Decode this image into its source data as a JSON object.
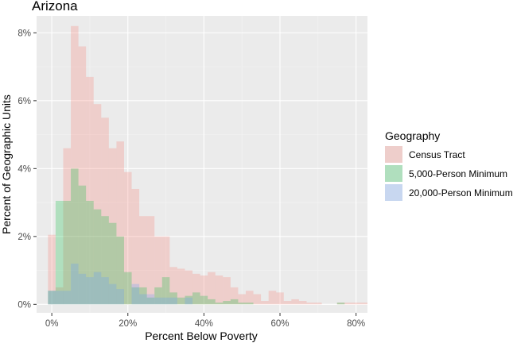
{
  "chart_data": {
    "type": "histogram",
    "title": "Arizona",
    "xlabel": "Percent Below Poverty",
    "ylabel": "Percent of Geographic Units",
    "xlim": [
      -4,
      83
    ],
    "ylim": [
      -0.25,
      8.5
    ],
    "x_ticks": [
      0,
      20,
      40,
      60,
      80
    ],
    "x_tick_labels": [
      "0%",
      "20%",
      "40%",
      "60%",
      "80%"
    ],
    "y_ticks": [
      0,
      2,
      4,
      6,
      8
    ],
    "y_tick_labels": [
      "0%",
      "2%",
      "4%",
      "6%",
      "8%"
    ],
    "grid": true,
    "bin_width": 2,
    "legend": {
      "title": "Geography",
      "position": "right",
      "entries": [
        "Census Tract",
        "5,000-Person Minimum",
        "20,000-Person Minimum"
      ]
    },
    "series": [
      {
        "name": "Census Tract",
        "color": "#F8766D",
        "bin_starts": [
          -1,
          1,
          3,
          5,
          7,
          9,
          11,
          13,
          15,
          17,
          19,
          21,
          23,
          25,
          27,
          29,
          31,
          33,
          35,
          37,
          39,
          41,
          43,
          45,
          47,
          49,
          51,
          53,
          55,
          57,
          59,
          61,
          63,
          65,
          67,
          69,
          71,
          73,
          75,
          77,
          79,
          81
        ],
        "values": [
          2.05,
          0.5,
          4.6,
          8.2,
          7.6,
          6.7,
          5.9,
          5.5,
          4.6,
          4.8,
          3.9,
          3.4,
          2.6,
          2.6,
          2.0,
          2.0,
          1.1,
          1.05,
          1.0,
          0.9,
          0.85,
          0.95,
          0.85,
          0.8,
          0.5,
          0.3,
          0.4,
          0.3,
          0.1,
          0.4,
          0.35,
          0.1,
          0.15,
          0.1,
          0.05,
          0.05,
          0.0,
          0.0,
          0.05,
          0.05,
          0.05,
          0.05
        ]
      },
      {
        "name": "5,000-Person Minimum",
        "color": "#00BA38",
        "bin_starts": [
          -1,
          1,
          3,
          5,
          7,
          9,
          11,
          13,
          15,
          17,
          19,
          21,
          23,
          25,
          27,
          29,
          31,
          33,
          35,
          37,
          39,
          41,
          43,
          45,
          47,
          49,
          51,
          53,
          55,
          57,
          59,
          61,
          63,
          65,
          67,
          69,
          71,
          73,
          75,
          77,
          79,
          81
        ],
        "values": [
          0.4,
          3.05,
          3.05,
          4.0,
          3.5,
          3.05,
          2.8,
          2.6,
          2.4,
          2.0,
          0.95,
          0.5,
          0.5,
          0.2,
          0.5,
          0.8,
          0.35,
          0.2,
          0.25,
          0.35,
          0.25,
          0.15,
          0.05,
          0.1,
          0.15,
          0.05,
          0.05,
          0.0,
          0.0,
          0.0,
          0.0,
          0.0,
          0.0,
          0.0,
          0.0,
          0.0,
          0.0,
          0.0,
          0.05,
          0.0,
          0.0,
          0.0
        ]
      },
      {
        "name": "20,000-Person Minimum",
        "color": "#619CFF",
        "bin_starts": [
          -1,
          1,
          3,
          5,
          7,
          9,
          11,
          13,
          15,
          17,
          19,
          21,
          23,
          25,
          27,
          29,
          31,
          33,
          35,
          37,
          39,
          41,
          43,
          45,
          47,
          49,
          51,
          53,
          55,
          57,
          59,
          61,
          63,
          65,
          67,
          69,
          71,
          73,
          75,
          77,
          79,
          81
        ],
        "values": [
          0.4,
          0.4,
          0.4,
          1.2,
          0.9,
          0.8,
          0.95,
          0.8,
          0.6,
          0.45,
          0.0,
          0.6,
          0.3,
          0.3,
          0.2,
          0.2,
          0.2,
          0.0,
          0.2,
          0.0,
          0.0,
          0.0,
          0.0,
          0.0,
          0.0,
          0.0,
          0.0,
          0.0,
          0.0,
          0.0,
          0.0,
          0.0,
          0.0,
          0.0,
          0.0,
          0.0,
          0.0,
          0.0,
          0.0,
          0.0,
          0.0,
          0.0
        ]
      }
    ]
  },
  "colors": {
    "panel_bg": "#EBEBEB",
    "grid_major": "#FFFFFF",
    "fill_opacity": 0.25
  }
}
